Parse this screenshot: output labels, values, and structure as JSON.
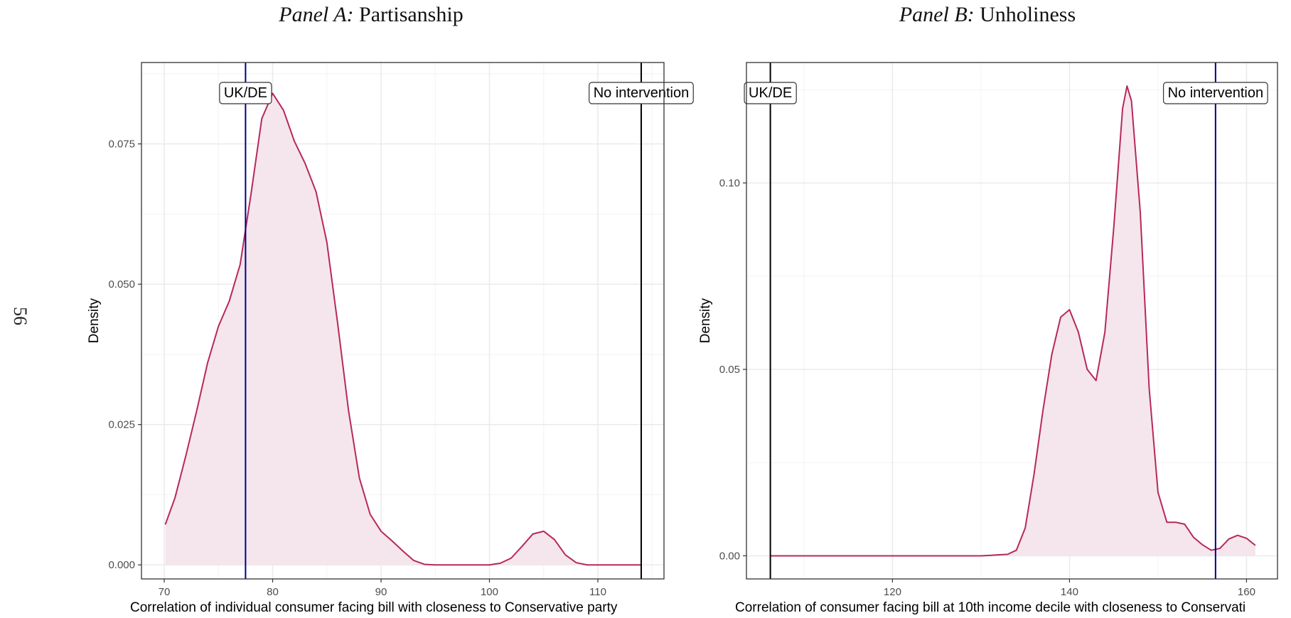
{
  "page": {
    "page_number": "56"
  },
  "chart_data": [
    {
      "type": "area",
      "title_prefix": "Panel A:",
      "title": "Partisanship",
      "xlabel": "Correlation of individual consumer facing bill with closeness to Conservative party",
      "ylabel": "Density",
      "xlim": [
        67.9,
        116.1
      ],
      "ylim": [
        -0.0025,
        0.0895
      ],
      "xticks": [
        70,
        80,
        90,
        100,
        110
      ],
      "yticks": [
        0.0,
        0.025,
        0.05,
        0.075
      ],
      "ytick_labels": [
        "0.000",
        "0.025",
        "0.050",
        "0.075"
      ],
      "xtick_labels": [
        "70",
        "80",
        "90",
        "100",
        "110"
      ],
      "grid": true,
      "series": [
        {
          "x": [
            70.1,
            71,
            72,
            73,
            74,
            75,
            76,
            77,
            78,
            79,
            80,
            81,
            82,
            83,
            84,
            85,
            86,
            87,
            88,
            89,
            90,
            91,
            92,
            93,
            94,
            95,
            96,
            98,
            100,
            101,
            102,
            103,
            104,
            105,
            106,
            107,
            108,
            109,
            110,
            112,
            114
          ],
          "y": [
            0.0072,
            0.012,
            0.0195,
            0.0275,
            0.036,
            0.0425,
            0.047,
            0.0535,
            0.066,
            0.0795,
            0.084,
            0.081,
            0.0755,
            0.0715,
            0.0665,
            0.0575,
            0.043,
            0.0275,
            0.0155,
            0.009,
            0.006,
            0.0043,
            0.0025,
            0.0008,
            0.0001,
            0.0,
            0.0,
            0.0,
            0.0,
            0.0003,
            0.0012,
            0.0033,
            0.0055,
            0.006,
            0.0045,
            0.0018,
            0.0004,
            0.0,
            0.0,
            0.0,
            0.0
          ]
        }
      ],
      "reference_lines": [
        {
          "label": "UK/DE",
          "x": 77.5,
          "color": "#00008b"
        },
        {
          "label": "No intervention",
          "x": 114.0,
          "color": "#000000"
        }
      ],
      "line_color": "#b8285a",
      "fill_color": "#f4e6ec"
    },
    {
      "type": "area",
      "title_prefix": "Panel B:",
      "title": "Unholiness",
      "xlabel": "Correlation of consumer facing bill at 10th income decile with closeness to Conservati",
      "ylabel": "Density",
      "xlim": [
        103.5,
        163.5
      ],
      "ylim": [
        -0.0062,
        0.1323
      ],
      "xticks": [
        120,
        140,
        160
      ],
      "xtick_labels": [
        "120",
        "140",
        "160"
      ],
      "yticks": [
        0.0,
        0.05,
        0.1
      ],
      "ytick_labels": [
        "0.00",
        "0.05",
        "0.10"
      ],
      "grid": true,
      "series": [
        {
          "x": [
            106.2,
            110,
            120,
            130,
            133,
            134,
            135,
            136,
            137,
            138,
            139,
            140,
            141,
            142,
            143,
            144,
            145,
            146,
            146.5,
            147,
            148,
            149,
            150,
            151,
            152,
            153,
            154,
            155,
            156,
            157,
            158,
            159,
            160,
            161
          ],
          "y": [
            0.0,
            0.0,
            0.0,
            0.0,
            0.0004,
            0.0015,
            0.0075,
            0.022,
            0.039,
            0.054,
            0.064,
            0.066,
            0.06,
            0.05,
            0.047,
            0.06,
            0.088,
            0.12,
            0.126,
            0.122,
            0.092,
            0.045,
            0.017,
            0.009,
            0.009,
            0.0085,
            0.005,
            0.003,
            0.0015,
            0.002,
            0.0045,
            0.0055,
            0.0047,
            0.0028
          ]
        }
      ],
      "reference_lines": [
        {
          "label": "UK/DE",
          "x": 106.2,
          "color": "#000000"
        },
        {
          "label": "No intervention",
          "x": 156.5,
          "color": "#00008b"
        }
      ],
      "line_color": "#b8285a",
      "fill_color": "#f4e6ec"
    }
  ]
}
